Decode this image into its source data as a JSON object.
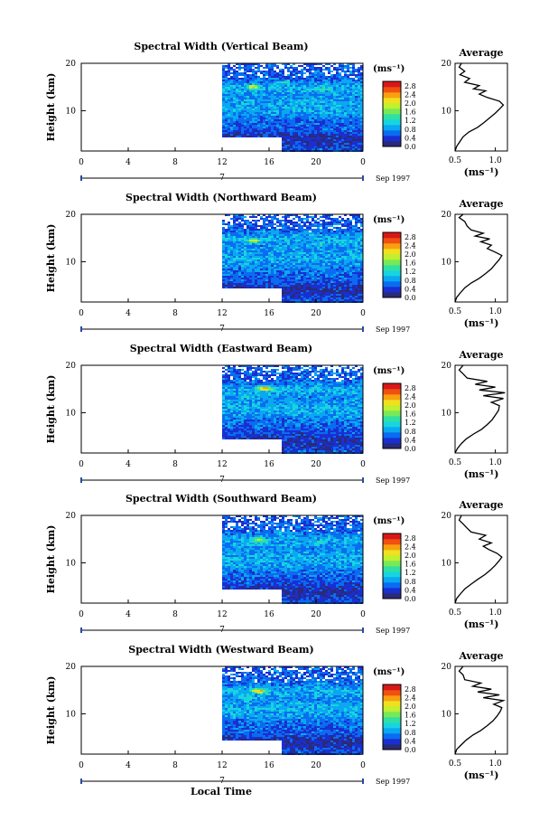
{
  "chart_data": {
    "type": "heatmap",
    "colorbar": {
      "unit": "(ms⁻¹)",
      "ticks": [
        "2.8",
        "2.4",
        "2.0",
        "1.6",
        "1.2",
        "0.8",
        "0.4",
        "0.0"
      ],
      "range": [
        0.0,
        3.0
      ],
      "colors": [
        "#2a2a78",
        "#1a2fd0",
        "#0a6cf0",
        "#0aa8f0",
        "#18d4e0",
        "#30e0a0",
        "#78e858",
        "#c0f030",
        "#f0e020",
        "#f8a010",
        "#f05010",
        "#d81818"
      ]
    },
    "xaxis": {
      "range": [
        0,
        24
      ],
      "ticks": [
        "0",
        "4",
        "8",
        "12",
        "16",
        "20",
        "0"
      ],
      "day_label": "7",
      "month_label": "Sep 1997",
      "xlabel": "Local Time"
    },
    "yaxis": {
      "label": "Height (km)",
      "range": [
        1.5,
        20
      ],
      "ticks": [
        "20",
        "10"
      ]
    },
    "data_window": {
      "start_hour": 12,
      "end_hour": 24,
      "low_limit_km": 4.5,
      "low_limit_after_hour": 17,
      "max_km": 20
    },
    "average": {
      "title": "Average",
      "xlabel": "(ms⁻¹)",
      "xrange": [
        0.5,
        1.15
      ],
      "yrange": [
        1.5,
        20
      ],
      "xticks": [
        "0.5",
        "1.0"
      ],
      "yticks": [
        "20",
        "10"
      ]
    },
    "panels": [
      {
        "title": "Spectral Width (Vertical Beam)",
        "average_profile": [
          [
            0.5,
            1.5
          ],
          [
            0.52,
            2.5
          ],
          [
            0.56,
            3.5
          ],
          [
            0.6,
            4.5
          ],
          [
            0.67,
            5.5
          ],
          [
            0.78,
            6.5
          ],
          [
            0.86,
            7.5
          ],
          [
            0.93,
            8.5
          ],
          [
            1.0,
            9.5
          ],
          [
            1.06,
            10.5
          ],
          [
            1.1,
            11.2
          ],
          [
            1.05,
            12
          ],
          [
            0.9,
            12.8
          ],
          [
            0.8,
            13.5
          ],
          [
            0.88,
            14.2
          ],
          [
            0.73,
            14.6
          ],
          [
            0.8,
            15.3
          ],
          [
            0.62,
            16
          ],
          [
            0.68,
            16.8
          ],
          [
            0.56,
            17.6
          ],
          [
            0.62,
            18.3
          ],
          [
            0.55,
            19.2
          ],
          [
            0.58,
            20
          ]
        ],
        "hot_spots": [
          [
            14.5,
            15.2,
            1.9
          ],
          [
            17,
            16.2,
            1.4
          ],
          [
            20.5,
            14.8,
            1.3
          ]
        ]
      },
      {
        "title": "Spectral Width (Northward Beam)",
        "average_profile": [
          [
            0.5,
            1.5
          ],
          [
            0.52,
            2.5
          ],
          [
            0.57,
            3.5
          ],
          [
            0.62,
            4.5
          ],
          [
            0.7,
            5.5
          ],
          [
            0.8,
            6.5
          ],
          [
            0.88,
            7.5
          ],
          [
            0.95,
            8.5
          ],
          [
            1.0,
            9.5
          ],
          [
            1.05,
            10.5
          ],
          [
            1.08,
            11.3
          ],
          [
            1.0,
            12
          ],
          [
            0.9,
            12.8
          ],
          [
            0.95,
            13.5
          ],
          [
            0.82,
            14.2
          ],
          [
            0.93,
            14.8
          ],
          [
            0.75,
            15.4
          ],
          [
            0.85,
            16
          ],
          [
            0.7,
            16.7
          ],
          [
            0.65,
            17.5
          ],
          [
            0.62,
            18.5
          ],
          [
            0.55,
            19.3
          ],
          [
            0.6,
            20
          ]
        ],
        "hot_spots": [
          [
            14.5,
            14.6,
            1.8
          ],
          [
            16,
            16.5,
            1.3
          ],
          [
            20,
            13.8,
            1.2
          ]
        ]
      },
      {
        "title": "Spectral Width (Eastward Beam)",
        "average_profile": [
          [
            0.5,
            1.5
          ],
          [
            0.53,
            2.5
          ],
          [
            0.58,
            3.5
          ],
          [
            0.64,
            4.5
          ],
          [
            0.73,
            5.5
          ],
          [
            0.83,
            6.5
          ],
          [
            0.9,
            7.5
          ],
          [
            0.96,
            8.5
          ],
          [
            1.0,
            9.5
          ],
          [
            1.04,
            10.5
          ],
          [
            1.05,
            11.5
          ],
          [
            0.95,
            12.2
          ],
          [
            1.1,
            13
          ],
          [
            0.85,
            13.6
          ],
          [
            1.12,
            14.2
          ],
          [
            0.8,
            14.8
          ],
          [
            1.0,
            15.4
          ],
          [
            0.75,
            16
          ],
          [
            0.9,
            16.6
          ],
          [
            0.65,
            17.3
          ],
          [
            0.6,
            18.2
          ],
          [
            0.55,
            19
          ],
          [
            0.6,
            20
          ]
        ],
        "hot_spots": [
          [
            15.5,
            15.3,
            2.6
          ],
          [
            14,
            13.5,
            1.3
          ],
          [
            20,
            16.5,
            1.2
          ]
        ]
      },
      {
        "title": "Spectral Width (Southward Beam)",
        "average_profile": [
          [
            0.5,
            1.5
          ],
          [
            0.52,
            2.5
          ],
          [
            0.57,
            3.5
          ],
          [
            0.62,
            4.5
          ],
          [
            0.7,
            5.5
          ],
          [
            0.78,
            6.5
          ],
          [
            0.87,
            7.5
          ],
          [
            0.94,
            8.5
          ],
          [
            1.0,
            9.5
          ],
          [
            1.05,
            10.5
          ],
          [
            1.08,
            11.2
          ],
          [
            1.02,
            12
          ],
          [
            0.92,
            12.8
          ],
          [
            0.85,
            13.5
          ],
          [
            0.95,
            14.2
          ],
          [
            0.8,
            15
          ],
          [
            0.88,
            15.8
          ],
          [
            0.7,
            16.5
          ],
          [
            0.65,
            17.3
          ],
          [
            0.6,
            18.2
          ],
          [
            0.55,
            19
          ],
          [
            0.58,
            20
          ]
        ],
        "hot_spots": [
          [
            15,
            15,
            1.8
          ],
          [
            17,
            16.8,
            1.3
          ],
          [
            20,
            14.5,
            1.2
          ]
        ]
      },
      {
        "title": "Spectral Width (Westward Beam)",
        "average_profile": [
          [
            0.5,
            1.5
          ],
          [
            0.52,
            2.5
          ],
          [
            0.58,
            3.5
          ],
          [
            0.64,
            4.5
          ],
          [
            0.72,
            5.5
          ],
          [
            0.82,
            6.5
          ],
          [
            0.9,
            7.5
          ],
          [
            0.97,
            8.5
          ],
          [
            1.02,
            9.5
          ],
          [
            1.06,
            10.5
          ],
          [
            1.08,
            11.3
          ],
          [
            0.98,
            12
          ],
          [
            1.1,
            12.8
          ],
          [
            0.85,
            13.4
          ],
          [
            1.05,
            14
          ],
          [
            0.78,
            14.6
          ],
          [
            0.95,
            15.2
          ],
          [
            0.72,
            15.8
          ],
          [
            0.82,
            16.5
          ],
          [
            0.62,
            17.2
          ],
          [
            0.6,
            18.2
          ],
          [
            0.55,
            19
          ],
          [
            0.6,
            20
          ]
        ],
        "hot_spots": [
          [
            15,
            15,
            2.4
          ],
          [
            14,
            13.4,
            1.4
          ],
          [
            20,
            16.6,
            1.3
          ]
        ]
      }
    ]
  }
}
